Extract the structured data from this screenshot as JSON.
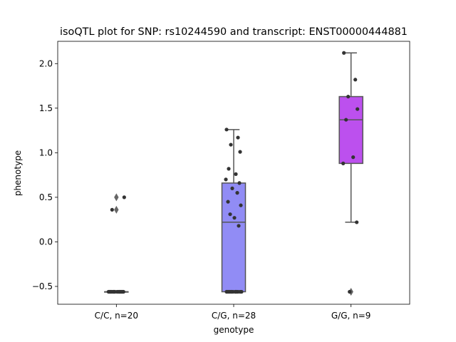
{
  "chart_data": {
    "type": "box",
    "title": "isoQTL plot for SNP: rs10244590 and transcript: ENST00000444881",
    "xlabel": "genotype",
    "ylabel": "phenotype",
    "ylim": [
      -0.7,
      2.25
    ],
    "yticks": [
      -0.5,
      0.0,
      0.5,
      1.0,
      1.5,
      2.0
    ],
    "ytick_labels": [
      "−0.5",
      "0.0",
      "0.5",
      "1.0",
      "1.5",
      "2.0"
    ],
    "categories": [
      "C/C, n=20",
      "C/G, n=28",
      "G/G, n=9"
    ],
    "colors": [
      "#6d94f0",
      "#918cf5",
      "#bc50ee"
    ],
    "median_color": "#555555",
    "point_color": "#333333",
    "boxes": [
      {
        "q1": -0.56,
        "median": -0.56,
        "q3": -0.56,
        "whislo": -0.56,
        "whishi": -0.56,
        "fliers": [
          0.5,
          0.36
        ]
      },
      {
        "q1": -0.56,
        "median": 0.22,
        "q3": 0.66,
        "whislo": -0.56,
        "whishi": 1.26,
        "fliers": []
      },
      {
        "q1": 0.88,
        "median": 1.37,
        "q3": 1.63,
        "whislo": 0.22,
        "whishi": 2.12,
        "fliers": [
          -0.56
        ]
      }
    ],
    "points": [
      [
        -0.56,
        -0.56,
        -0.56,
        -0.56,
        -0.56,
        -0.56,
        -0.56,
        -0.56,
        -0.56,
        -0.56,
        -0.56,
        -0.56,
        -0.56,
        -0.56,
        -0.56,
        -0.56,
        -0.56,
        -0.56,
        0.5,
        0.36
      ],
      [
        1.26,
        1.17,
        1.09,
        1.01,
        0.82,
        0.76,
        0.7,
        0.66,
        0.6,
        0.55,
        0.45,
        0.41,
        0.31,
        0.27,
        0.18,
        -0.56,
        -0.56,
        -0.56,
        -0.56,
        -0.56,
        -0.56,
        -0.56,
        -0.56,
        -0.56,
        -0.56,
        -0.56,
        -0.56,
        -0.56
      ],
      [
        2.12,
        1.82,
        1.63,
        1.49,
        1.37,
        0.95,
        0.88,
        0.22,
        -0.56
      ]
    ]
  }
}
